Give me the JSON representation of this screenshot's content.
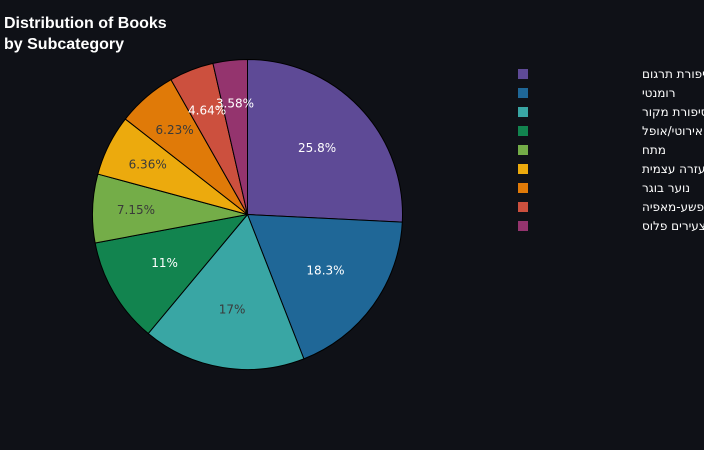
{
  "chart_data": {
    "type": "pie",
    "title_lines": [
      "Distribution of Books",
      "by Subcategory"
    ],
    "slices": [
      {
        "label": "סיפורת תרגום",
        "value": 25.8,
        "text": "25.8%",
        "color": "#5e4a96",
        "label_color": "#ffffff"
      },
      {
        "label": "רומנטי",
        "value": 18.3,
        "text": "18.3%",
        "color": "#1f6797",
        "label_color": "#ffffff"
      },
      {
        "label": "סיפורת מקור",
        "value": 17,
        "text": "17%",
        "color": "#39a6a4",
        "label_color": "#3a3a3a"
      },
      {
        "label": "אירוטי/אופל",
        "value": 11,
        "text": "11%",
        "color": "#12844f",
        "label_color": "#ffffff"
      },
      {
        "label": "מתח",
        "value": 7.15,
        "text": "7.15%",
        "color": "#74ad48",
        "label_color": "#3a3a3a"
      },
      {
        "label": "פסיכולוגיה מודעות ועזרה עצמית",
        "value": 6.36,
        "text": "6.36%",
        "color": "#ecaa0d",
        "label_color": "#3a3a3a"
      },
      {
        "label": "נוער בוגר",
        "value": 6.23,
        "text": "6.23%",
        "color": "#e07a08",
        "label_color": "#3a3a3a"
      },
      {
        "label": "רומנטי/ פשע-מאפיה",
        "value": 4.64,
        "text": "4.64%",
        "color": "#cc503e",
        "label_color": "#ffffff"
      },
      {
        "label": "רומנטי/צעירים פלוס",
        "value": 3.58,
        "text": "3.58%",
        "color": "#94346e",
        "label_color": "#ffffff"
      }
    ],
    "legend_position": "right",
    "direction": "clockwise",
    "start": "top"
  }
}
